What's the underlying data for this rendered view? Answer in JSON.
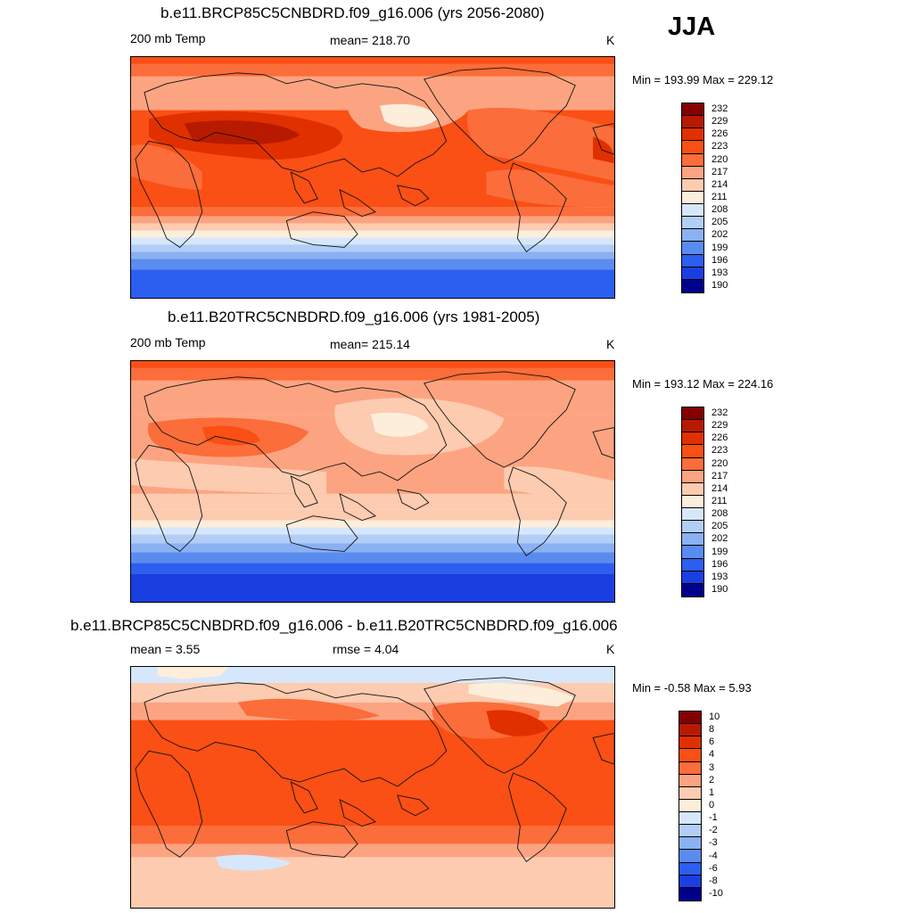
{
  "season": "JJA",
  "scale": {
    "abs_levels": [
      "232",
      "229",
      "226",
      "223",
      "220",
      "217",
      "214",
      "211",
      "208",
      "205",
      "202",
      "199",
      "196",
      "193",
      "190"
    ],
    "diff_levels": [
      "10",
      "8",
      "6",
      "4",
      "3",
      "2",
      "1",
      "0",
      "-1",
      "-2",
      "-3",
      "-4",
      "-6",
      "-8",
      "-10"
    ],
    "colors": [
      "#840000",
      "#b81a00",
      "#e03000",
      "#fa4f15",
      "#fb6d3a",
      "#fca481",
      "#fdcbb0",
      "#fdeedc",
      "#d6e7fb",
      "#b2cef7",
      "#8ab1f2",
      "#5a8cef",
      "#2c5ef0",
      "#1a3fe0",
      "#00008b"
    ]
  },
  "chart_data": [
    {
      "type": "heatmap",
      "panel": "future",
      "title": "b.e11.BRCP85C5CNBDRD.f09_g16.006 (yrs 2056-2080)",
      "left_label": "200 mb Temp",
      "center_label": "mean= 218.70",
      "units": "K",
      "minmax": "Min = 193.99 Max = 229.12",
      "min": 193.99,
      "max": 229.12,
      "mean": 218.7
    },
    {
      "type": "heatmap",
      "panel": "present",
      "title": "b.e11.B20TRC5CNBDRD.f09_g16.006 (yrs 1981-2005)",
      "left_label": "200 mb Temp",
      "center_label": "mean= 215.14",
      "units": "K",
      "minmax": "Min = 193.12 Max = 224.16",
      "min": 193.12,
      "max": 224.16,
      "mean": 215.14
    },
    {
      "type": "heatmap",
      "panel": "difference",
      "title": "b.e11.BRCP85C5CNBDRD.f09_g16.006 - b.e11.B20TRC5CNBDRD.f09_g16.006",
      "left_label": "mean =   3.55",
      "center_label": "rmse =   4.04",
      "units": "K",
      "minmax": "Min =  -0.58 Max =   5.93",
      "min": -0.58,
      "max": 5.93,
      "mean": 3.55,
      "rmse": 4.04
    }
  ]
}
